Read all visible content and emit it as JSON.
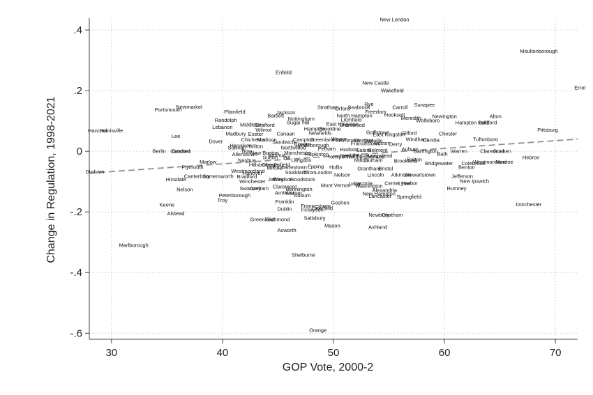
{
  "chart_data": {
    "type": "scatter",
    "title": "",
    "xlabel": "GOP Vote, 2000-2",
    "ylabel": "Change in Regulation, 1998-2021",
    "xlim": [
      28,
      72
    ],
    "ylim": [
      -0.62,
      0.43
    ],
    "xticks": [
      30,
      40,
      50,
      60,
      70
    ],
    "xtick_labels": [
      "30",
      "40",
      "50",
      "60",
      "70"
    ],
    "yticks": [
      -0.6,
      -0.4,
      -0.2,
      0,
      0.2,
      0.4
    ],
    "ytick_labels": [
      "-.6",
      "-.4",
      "-.2",
      "0",
      ".2",
      ".4"
    ],
    "grid": true,
    "fit_line": {
      "x": [
        28,
        72
      ],
      "y": [
        -0.072,
        0.04
      ]
    },
    "points": [
      {
        "label": "New London",
        "x": 55.5,
        "y": 0.435
      },
      {
        "label": "Moultonborough",
        "x": 68.5,
        "y": 0.33
      },
      {
        "label": "Errol",
        "x": 72.2,
        "y": 0.21
      },
      {
        "label": "Enfield",
        "x": 45.5,
        "y": 0.26
      },
      {
        "label": "New Castle",
        "x": 53.8,
        "y": 0.225
      },
      {
        "label": "Wakefield",
        "x": 55.3,
        "y": 0.2
      },
      {
        "label": "Harrisville",
        "x": 30,
        "y": 0.068
      },
      {
        "label": "Hancock",
        "x": 28.8,
        "y": 0.068
      },
      {
        "label": "Portsmouth",
        "x": 35.1,
        "y": 0.137
      },
      {
        "label": "Newmarket",
        "x": 37,
        "y": 0.146
      },
      {
        "label": "Plainfield",
        "x": 41.1,
        "y": 0.13
      },
      {
        "label": "Jackson",
        "x": 45.7,
        "y": 0.128
      },
      {
        "label": "Bartlett",
        "x": 44.8,
        "y": 0.118
      },
      {
        "label": "Randolph",
        "x": 40.3,
        "y": 0.103
      },
      {
        "label": "Middleton",
        "x": 42.6,
        "y": 0.088
      },
      {
        "label": "Strafford",
        "x": 43.8,
        "y": 0.086
      },
      {
        "label": "Lebanon",
        "x": 40,
        "y": 0.08
      },
      {
        "label": "Wilmot",
        "x": 43.7,
        "y": 0.071
      },
      {
        "label": "Madbury",
        "x": 41.2,
        "y": 0.058
      },
      {
        "label": "Exeter",
        "x": 43,
        "y": 0.057
      },
      {
        "label": "Canaan",
        "x": 45.7,
        "y": 0.058
      },
      {
        "label": "Lee",
        "x": 35.8,
        "y": 0.05
      },
      {
        "label": "Dover",
        "x": 39.4,
        "y": 0.033
      },
      {
        "label": "Chichester",
        "x": 42.8,
        "y": 0.038
      },
      {
        "label": "Madison",
        "x": 44,
        "y": 0.038
      },
      {
        "label": "Sandwich",
        "x": 45.5,
        "y": 0.03
      },
      {
        "label": "Henniker",
        "x": 41.6,
        "y": 0.019
      },
      {
        "label": "Wilton",
        "x": 43,
        "y": 0.016
      },
      {
        "label": "Sullivan",
        "x": 41.3,
        "y": 0.012
      },
      {
        "label": "Nottingham",
        "x": 47.1,
        "y": 0.107
      },
      {
        "label": "Sugar Hill",
        "x": 46.8,
        "y": 0.094
      },
      {
        "label": "Hampton",
        "x": 48.3,
        "y": 0.074
      },
      {
        "label": "Brookline",
        "x": 49.7,
        "y": 0.074
      },
      {
        "label": "Newfields",
        "x": 48.8,
        "y": 0.06
      },
      {
        "label": "Stratham",
        "x": 49.5,
        "y": 0.145
      },
      {
        "label": "Orford",
        "x": 50.8,
        "y": 0.14
      },
      {
        "label": "Seabrook",
        "x": 52.3,
        "y": 0.145
      },
      {
        "label": "Rye",
        "x": 53.2,
        "y": 0.155
      },
      {
        "label": "Freedom",
        "x": 53.8,
        "y": 0.13
      },
      {
        "label": "Carroll",
        "x": 56,
        "y": 0.145
      },
      {
        "label": "Sunapee",
        "x": 58.2,
        "y": 0.153
      },
      {
        "label": "North Hampton",
        "x": 51.9,
        "y": 0.118
      },
      {
        "label": "Litchfield",
        "x": 51.6,
        "y": 0.104
      },
      {
        "label": "Hooksett",
        "x": 55.5,
        "y": 0.12
      },
      {
        "label": "Meredith",
        "x": 57,
        "y": 0.11
      },
      {
        "label": "Newington",
        "x": 60,
        "y": 0.115
      },
      {
        "label": "Wolfeboro",
        "x": 58.5,
        "y": 0.102
      },
      {
        "label": "Alton",
        "x": 64.6,
        "y": 0.115
      },
      {
        "label": "Hampton Falls",
        "x": 62.5,
        "y": 0.094
      },
      {
        "label": "Bedford",
        "x": 63.9,
        "y": 0.094
      },
      {
        "label": "East Kingston",
        "x": 50.8,
        "y": 0.09
      },
      {
        "label": "Brentwood",
        "x": 51.7,
        "y": 0.086
      },
      {
        "label": "Pittsburg",
        "x": 69.3,
        "y": 0.07
      },
      {
        "label": "Goffstown",
        "x": 54,
        "y": 0.062
      },
      {
        "label": "East Kingston",
        "x": 55,
        "y": 0.055
      },
      {
        "label": "Gilford",
        "x": 56.8,
        "y": 0.06
      },
      {
        "label": "Chester",
        "x": 60.3,
        "y": 0.058
      },
      {
        "label": "Windham",
        "x": 57.5,
        "y": 0.039
      },
      {
        "label": "Candia",
        "x": 58.8,
        "y": 0.037
      },
      {
        "label": "Tuftonboro",
        "x": 63.7,
        "y": 0.039
      },
      {
        "label": "Boston",
        "x": 54.4,
        "y": 0.027
      },
      {
        "label": "Danville",
        "x": 53.6,
        "y": 0.035
      },
      {
        "label": "Francestown",
        "x": 52.9,
        "y": 0.026
      },
      {
        "label": "Derry",
        "x": 55.6,
        "y": 0.023
      },
      {
        "label": "Auburn",
        "x": 56.9,
        "y": 0.007
      },
      {
        "label": "Barrington",
        "x": 58.3,
        "y": 0
      },
      {
        "label": "Bath",
        "x": 59.8,
        "y": -0.009
      },
      {
        "label": "Warren",
        "x": 61.3,
        "y": 0
      },
      {
        "label": "Claremont",
        "x": 64.3,
        "y": 0
      },
      {
        "label": "Goshen",
        "x": 65.2,
        "y": 0
      },
      {
        "label": "Hebron",
        "x": 67.8,
        "y": -0.02
      },
      {
        "label": "Dalton",
        "x": 57.3,
        "y": -0.027
      },
      {
        "label": "Brookfield",
        "x": 56.5,
        "y": -0.032
      },
      {
        "label": "Bridgewater",
        "x": 59.5,
        "y": -0.04
      },
      {
        "label": "Colebrook",
        "x": 62.6,
        "y": -0.04
      },
      {
        "label": "Benton",
        "x": 62,
        "y": -0.052
      },
      {
        "label": "Westmoreland",
        "x": 64.1,
        "y": -0.035
      },
      {
        "label": "Monroe",
        "x": 65.4,
        "y": -0.035
      },
      {
        "label": "Berlin",
        "x": 34.3,
        "y": 0
      },
      {
        "label": "Concord",
        "x": 36.2,
        "y": 0
      },
      {
        "label": "Goshen",
        "x": 36.3,
        "y": 0
      },
      {
        "label": "Marlow",
        "x": 38.7,
        "y": -0.035
      },
      {
        "label": "Plymouth",
        "x": 37.3,
        "y": -0.052
      },
      {
        "label": "Canterbury",
        "x": 37.7,
        "y": -0.082
      },
      {
        "label": "Somersworth",
        "x": 39.6,
        "y": -0.082
      },
      {
        "label": "Hinsdale",
        "x": 35.8,
        "y": -0.093
      },
      {
        "label": "Nelson",
        "x": 36.6,
        "y": -0.126
      },
      {
        "label": "Peterborough",
        "x": 41.1,
        "y": -0.146
      },
      {
        "label": "Troy",
        "x": 40,
        "y": -0.162
      },
      {
        "label": "Keene",
        "x": 35,
        "y": -0.176
      },
      {
        "label": "Alstead",
        "x": 35.8,
        "y": -0.205
      },
      {
        "label": "Marlborough",
        "x": 32,
        "y": -0.31
      },
      {
        "label": "Durham",
        "x": 28.5,
        "y": -0.067
      },
      {
        "label": "Westmoreland",
        "x": 42.3,
        "y": -0.065
      },
      {
        "label": "Hanover",
        "x": 42.7,
        "y": -0.072
      },
      {
        "label": "Milford",
        "x": 44.7,
        "y": -0.055
      },
      {
        "label": "Charlestown",
        "x": 46.3,
        "y": -0.052
      },
      {
        "label": "Epping",
        "x": 48.4,
        "y": -0.05
      },
      {
        "label": "Stoddard",
        "x": 46.6,
        "y": -0.07
      },
      {
        "label": "Tilton",
        "x": 47.8,
        "y": -0.07
      },
      {
        "label": "Loudon",
        "x": 49.1,
        "y": -0.07
      },
      {
        "label": "Hollis",
        "x": 50.2,
        "y": -0.052
      },
      {
        "label": "Bradford",
        "x": 42.2,
        "y": -0.084
      },
      {
        "label": "Jaffrey",
        "x": 44.8,
        "y": -0.093
      },
      {
        "label": "Windsor",
        "x": 45.4,
        "y": -0.093
      },
      {
        "label": "Woodstock",
        "x": 47.2,
        "y": -0.093
      },
      {
        "label": "Nelson",
        "x": 50.8,
        "y": -0.078
      },
      {
        "label": "Grantham",
        "x": 53.2,
        "y": -0.057
      },
      {
        "label": "Bristol",
        "x": 54.7,
        "y": -0.057
      },
      {
        "label": "Lincoln",
        "x": 53.8,
        "y": -0.078
      },
      {
        "label": "Atkinson",
        "x": 56.1,
        "y": -0.078
      },
      {
        "label": "Stewartstown",
        "x": 57.8,
        "y": -0.078
      },
      {
        "label": "Jefferson",
        "x": 61.6,
        "y": -0.082
      },
      {
        "label": "New Ipswich",
        "x": 62.7,
        "y": -0.098
      },
      {
        "label": "Center Harbor",
        "x": 56.1,
        "y": -0.105
      },
      {
        "label": "Lyme",
        "x": 56.4,
        "y": -0.105
      },
      {
        "label": "Winchester",
        "x": 42.7,
        "y": -0.1
      },
      {
        "label": "Mont Vernon",
        "x": 50.2,
        "y": -0.112
      },
      {
        "label": "Unity",
        "x": 51.9,
        "y": -0.108
      },
      {
        "label": "Laconia",
        "x": 52.7,
        "y": -0.105
      },
      {
        "label": "Washington",
        "x": 53.2,
        "y": -0.115
      },
      {
        "label": "Rumney",
        "x": 61.1,
        "y": -0.122
      },
      {
        "label": "Swanzey",
        "x": 42.5,
        "y": -0.122
      },
      {
        "label": "Gorham",
        "x": 43.3,
        "y": -0.122
      },
      {
        "label": "Claremont",
        "x": 45.6,
        "y": -0.117
      },
      {
        "label": "Bennington",
        "x": 46.9,
        "y": -0.125
      },
      {
        "label": "Alexandria",
        "x": 54.6,
        "y": -0.128
      },
      {
        "label": "New Hampton",
        "x": 54.1,
        "y": -0.14
      },
      {
        "label": "Lancaster",
        "x": 54.2,
        "y": -0.148
      },
      {
        "label": "Springfield",
        "x": 56.8,
        "y": -0.15
      },
      {
        "label": "Amherst",
        "x": 45.6,
        "y": -0.137
      },
      {
        "label": "Warner",
        "x": 46.4,
        "y": -0.137
      },
      {
        "label": "Auburn",
        "x": 47.2,
        "y": -0.146
      },
      {
        "label": "Franklin",
        "x": 45.6,
        "y": -0.166
      },
      {
        "label": "Goshen",
        "x": 50.6,
        "y": -0.17
      },
      {
        "label": "Francestown",
        "x": 48.4,
        "y": -0.18
      },
      {
        "label": "Dublin",
        "x": 45.6,
        "y": -0.19
      },
      {
        "label": "Finlayson",
        "x": 48.1,
        "y": -0.193
      },
      {
        "label": "Deerfield",
        "x": 49,
        "y": -0.188
      },
      {
        "label": "Greenland",
        "x": 43.6,
        "y": -0.225
      },
      {
        "label": "Richmond",
        "x": 45,
        "y": -0.225
      },
      {
        "label": "Salisbury",
        "x": 48.3,
        "y": -0.22
      },
      {
        "label": "Newbury",
        "x": 54.1,
        "y": -0.21
      },
      {
        "label": "Chatham",
        "x": 55.3,
        "y": -0.21
      },
      {
        "label": "Mason",
        "x": 49.9,
        "y": -0.245
      },
      {
        "label": "Ashland",
        "x": 54,
        "y": -0.25
      },
      {
        "label": "Acworth",
        "x": 45.8,
        "y": -0.26
      },
      {
        "label": "Dorchester",
        "x": 67.6,
        "y": -0.175
      },
      {
        "label": "Shelburne",
        "x": 47.3,
        "y": -0.342
      },
      {
        "label": "Orange",
        "x": 48.6,
        "y": -0.59
      },
      {
        "label": "Bow",
        "x": 42.2,
        "y": 0
      },
      {
        "label": "Northwood",
        "x": 46.4,
        "y": 0.012
      },
      {
        "label": "Campton",
        "x": 47.3,
        "y": 0.038
      },
      {
        "label": "Greenland",
        "x": 49,
        "y": 0.038
      },
      {
        "label": "Weare",
        "x": 50.5,
        "y": 0.04
      },
      {
        "label": "Merrimack",
        "x": 51.3,
        "y": 0.036
      },
      {
        "label": "Fremont",
        "x": 52.7,
        "y": 0.036
      },
      {
        "label": "Epsom",
        "x": 47.2,
        "y": 0.025
      },
      {
        "label": "Lyndeborough",
        "x": 48.1,
        "y": 0.02
      },
      {
        "label": "Pelham",
        "x": 49.4,
        "y": 0.008
      },
      {
        "label": "Hudson",
        "x": 51.4,
        "y": 0.006
      },
      {
        "label": "Salem",
        "x": 52.7,
        "y": 0.004
      },
      {
        "label": "Belmont",
        "x": 54,
        "y": 0.004
      },
      {
        "label": "Allenstown",
        "x": 42,
        "y": -0.01
      },
      {
        "label": "New Boston",
        "x": 43.8,
        "y": -0.005
      },
      {
        "label": "Nashua",
        "x": 44.9,
        "y": -0.012
      },
      {
        "label": "Manchester",
        "x": 46.8,
        "y": -0.005
      },
      {
        "label": "Hopkinton",
        "x": 48.5,
        "y": -0.01
      },
      {
        "label": "Langdon",
        "x": 47.1,
        "y": -0.03
      },
      {
        "label": "Sutton",
        "x": 44.3,
        "y": -0.02
      },
      {
        "label": "Hill",
        "x": 45.8,
        "y": -0.022
      },
      {
        "label": "Newport",
        "x": 50.4,
        "y": -0.018
      },
      {
        "label": "Northfield",
        "x": 51.6,
        "y": -0.015
      },
      {
        "label": "Northumberland",
        "x": 52.9,
        "y": -0.018
      },
      {
        "label": "Hampstead",
        "x": 54.1,
        "y": -0.015
      },
      {
        "label": "Milton",
        "x": 52.5,
        "y": -0.03
      },
      {
        "label": "Durham",
        "x": 53.6,
        "y": -0.03
      },
      {
        "label": "Nashua",
        "x": 42.2,
        "y": -0.03
      },
      {
        "label": "Hillsborough",
        "x": 43.7,
        "y": -0.045
      },
      {
        "label": "Chesterfield",
        "x": 44.8,
        "y": -0.045
      }
    ]
  }
}
